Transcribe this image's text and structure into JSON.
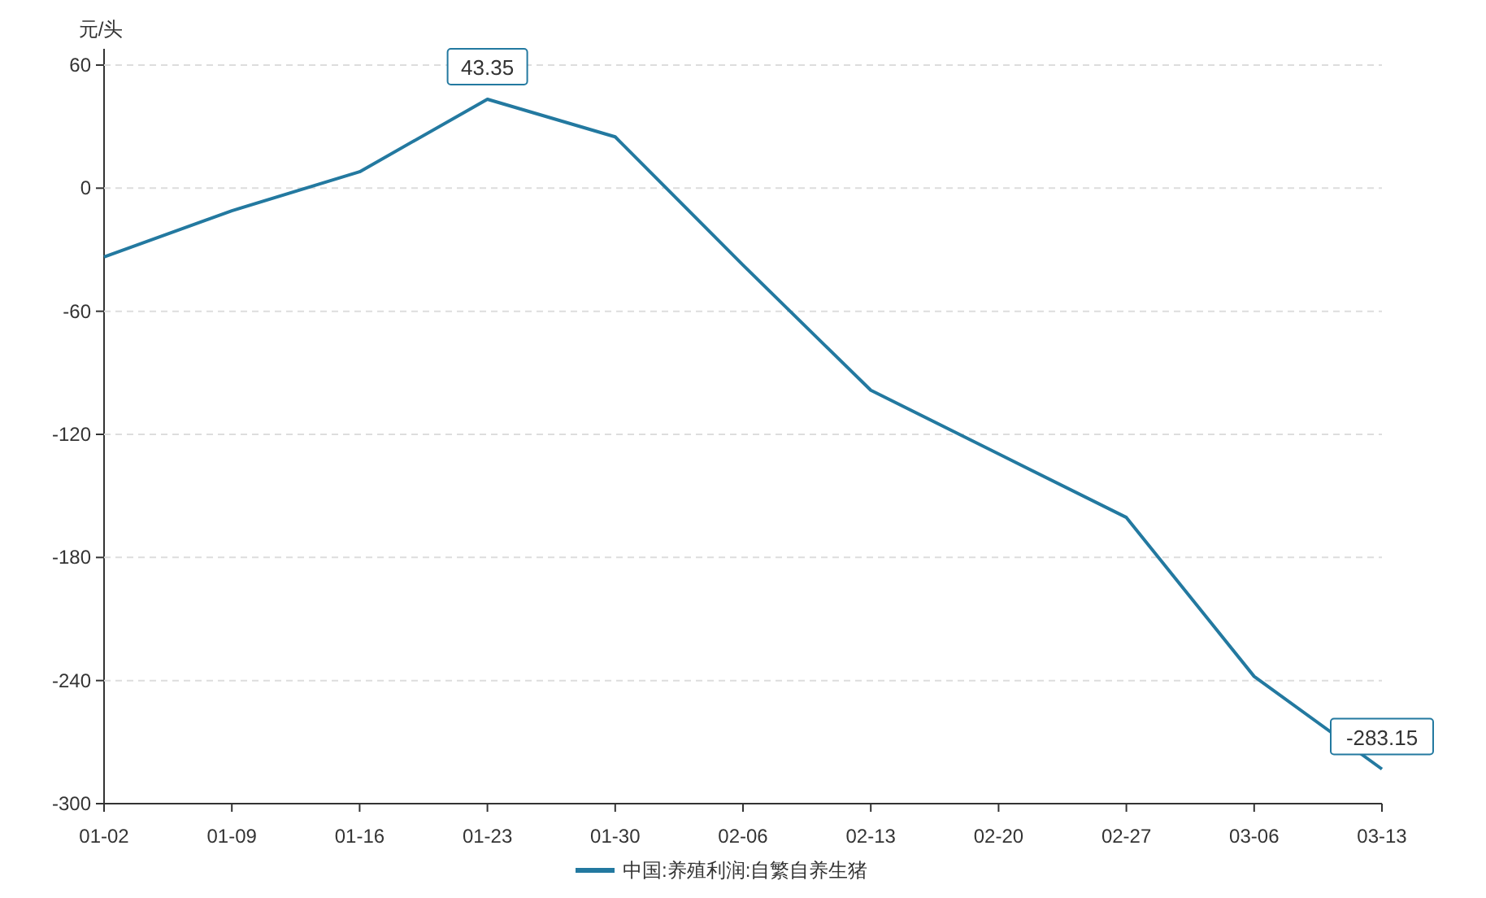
{
  "chart_data": {
    "type": "line",
    "ylabel": "元/头",
    "categories": [
      "01-02",
      "01-09",
      "01-16",
      "01-23",
      "01-30",
      "02-06",
      "02-13",
      "02-20",
      "02-27",
      "03-06",
      "03-13"
    ],
    "series": [
      {
        "name": "中国:养殖利润:自繁自养生猪",
        "color": "#2379a0",
        "values": [
          -33.5,
          -11,
          8,
          43.35,
          25,
          -37.5,
          -98.5,
          -129.5,
          -160.5,
          -238,
          -283.15
        ],
        "value_labels": [
          null,
          null,
          null,
          "43.35",
          null,
          null,
          null,
          null,
          null,
          null,
          "-283.15"
        ]
      }
    ],
    "ylim": [
      -300,
      60
    ],
    "yticks": [
      -300,
      -240,
      -180,
      -120,
      -60,
      0,
      60
    ],
    "grid": "y",
    "legend": "bottom",
    "marker": "none",
    "line_style": "solid"
  }
}
